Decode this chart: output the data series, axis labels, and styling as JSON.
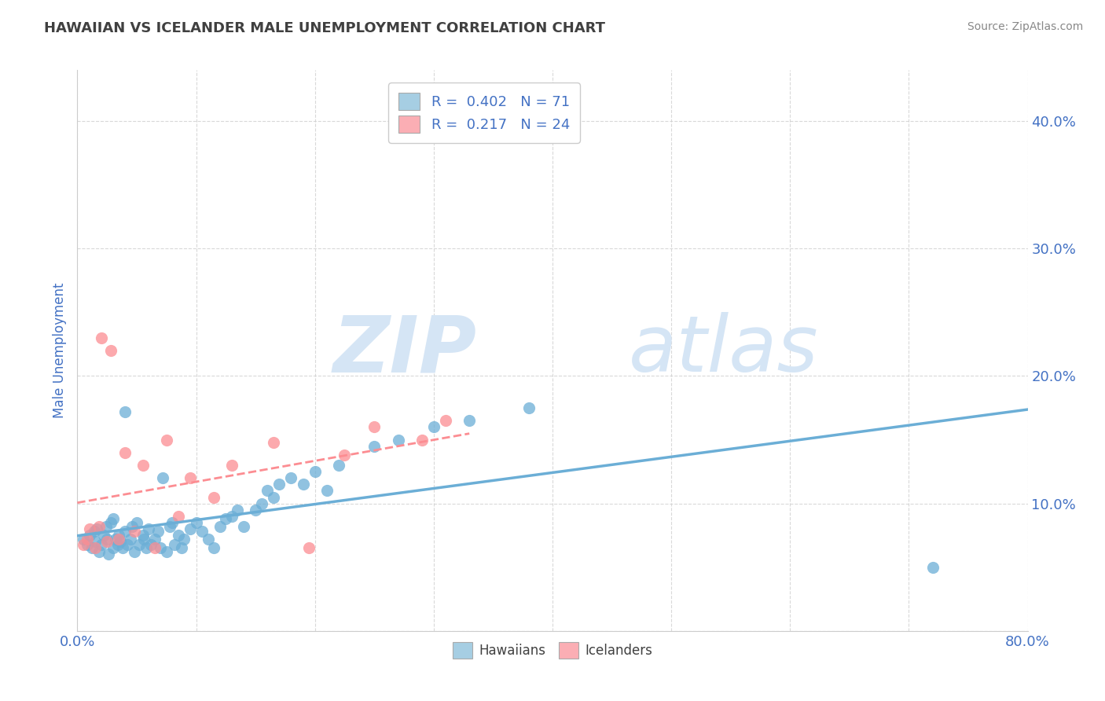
{
  "title": "HAWAIIAN VS ICELANDER MALE UNEMPLOYMENT CORRELATION CHART",
  "source_text": "Source: ZipAtlas.com",
  "ylabel": "Male Unemployment",
  "xlim": [
    0.0,
    0.8
  ],
  "ylim": [
    0.0,
    0.44
  ],
  "xticks": [
    0.0,
    0.1,
    0.2,
    0.3,
    0.4,
    0.5,
    0.6,
    0.7,
    0.8
  ],
  "xticklabels_show": [
    "0.0%",
    "80.0%"
  ],
  "xticklabels_pos": [
    0.0,
    0.8
  ],
  "yticks": [
    0.0,
    0.1,
    0.2,
    0.3,
    0.4
  ],
  "yticklabels": [
    "",
    "10.0%",
    "20.0%",
    "30.0%",
    "40.0%"
  ],
  "hawaiians_R": 0.402,
  "hawaiians_N": 71,
  "icelanders_R": 0.217,
  "icelanders_N": 24,
  "hawaiian_color": "#6baed6",
  "icelander_color": "#fc8d92",
  "legend_color_hawaiian": "#a6cee3",
  "legend_color_icelander": "#fbaeb4",
  "watermark_zip": "ZIP",
  "watermark_atlas": "atlas",
  "watermark_color": "#d5e5f5",
  "background_color": "#ffffff",
  "grid_color": "#d0d0d0",
  "tick_label_color": "#4472c4",
  "title_color": "#404040",
  "source_color": "#888888",
  "hawaiians_x": [
    0.005,
    0.008,
    0.01,
    0.012,
    0.014,
    0.015,
    0.016,
    0.018,
    0.02,
    0.022,
    0.024,
    0.025,
    0.026,
    0.028,
    0.03,
    0.03,
    0.032,
    0.034,
    0.035,
    0.036,
    0.038,
    0.04,
    0.04,
    0.042,
    0.045,
    0.046,
    0.048,
    0.05,
    0.052,
    0.055,
    0.056,
    0.058,
    0.06,
    0.062,
    0.065,
    0.068,
    0.07,
    0.072,
    0.075,
    0.078,
    0.08,
    0.082,
    0.085,
    0.088,
    0.09,
    0.095,
    0.1,
    0.105,
    0.11,
    0.115,
    0.12,
    0.125,
    0.13,
    0.135,
    0.14,
    0.15,
    0.155,
    0.16,
    0.165,
    0.17,
    0.18,
    0.19,
    0.2,
    0.21,
    0.22,
    0.25,
    0.27,
    0.3,
    0.33,
    0.38,
    0.72
  ],
  "hawaiians_y": [
    0.072,
    0.068,
    0.075,
    0.065,
    0.078,
    0.07,
    0.08,
    0.062,
    0.068,
    0.075,
    0.082,
    0.072,
    0.06,
    0.085,
    0.065,
    0.088,
    0.072,
    0.068,
    0.075,
    0.07,
    0.065,
    0.078,
    0.172,
    0.068,
    0.072,
    0.082,
    0.062,
    0.085,
    0.068,
    0.075,
    0.072,
    0.065,
    0.08,
    0.068,
    0.072,
    0.078,
    0.065,
    0.12,
    0.062,
    0.082,
    0.085,
    0.068,
    0.075,
    0.065,
    0.072,
    0.08,
    0.085,
    0.078,
    0.072,
    0.065,
    0.082,
    0.088,
    0.09,
    0.095,
    0.082,
    0.095,
    0.1,
    0.11,
    0.105,
    0.115,
    0.12,
    0.115,
    0.125,
    0.11,
    0.13,
    0.145,
    0.15,
    0.16,
    0.165,
    0.175,
    0.05
  ],
  "icelanders_x": [
    0.005,
    0.008,
    0.01,
    0.015,
    0.018,
    0.02,
    0.025,
    0.028,
    0.035,
    0.04,
    0.048,
    0.055,
    0.065,
    0.075,
    0.085,
    0.095,
    0.115,
    0.13,
    0.165,
    0.195,
    0.225,
    0.25,
    0.29,
    0.31
  ],
  "icelanders_y": [
    0.068,
    0.072,
    0.08,
    0.065,
    0.082,
    0.23,
    0.07,
    0.22,
    0.072,
    0.14,
    0.078,
    0.13,
    0.065,
    0.15,
    0.09,
    0.12,
    0.105,
    0.13,
    0.148,
    0.065,
    0.138,
    0.16,
    0.15,
    0.165
  ]
}
